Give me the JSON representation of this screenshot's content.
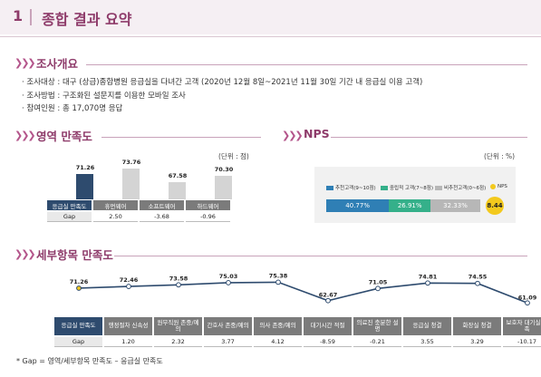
{
  "header": {
    "number": "1",
    "title": "종합 결과 요약"
  },
  "overview": {
    "title": "조사개요",
    "bullets": [
      "· 조사대상 : 대구 (상급)종합병원 응급실을 다녀간 고객 (2020년 12월 8일~2021년 11월 30일 기간 내 응급실 이용 고객)",
      "· 조사방법 : 구조화된 설문지를 이용한 모바일 조사",
      "· 참여인원 : 총 17,070명 응답"
    ]
  },
  "area": {
    "title": "영역 만족도",
    "unit": "(단위 : 점)",
    "gap_label": "Gap",
    "chart_data": {
      "type": "bar",
      "categories": [
        "응급실 만족도",
        "휴먼웨어",
        "소프트웨어",
        "하드웨어"
      ],
      "values": [
        71.26,
        73.76,
        67.58,
        70.3
      ],
      "value_labels": [
        "71.26",
        "73.76",
        "67.58",
        "70.30"
      ],
      "gaps": [
        "",
        "2.50",
        "-3.68",
        "-0.96"
      ],
      "colors": [
        "#2e4b6e",
        "#d4d4d4",
        "#d4d4d4",
        "#d4d4d4"
      ]
    }
  },
  "nps": {
    "title": "NPS",
    "unit": "(단위 : %)",
    "chart_data": {
      "type": "bar",
      "orientation": "stacked-horizontal",
      "series": [
        {
          "name": "추천고객(9~10점)",
          "value": 40.77,
          "label": "40.77%",
          "color": "#2f7fb5"
        },
        {
          "name": "중립적 고객(7~8점)",
          "value": 26.91,
          "label": "26.91%",
          "color": "#35b08a"
        },
        {
          "name": "비추천고객(0~6점)",
          "value": 32.33,
          "label": "32.33%",
          "color": "#b7b7b7"
        }
      ],
      "nps_label": "NPS",
      "nps_value": "8.44",
      "nps_color": "#f3c91d"
    }
  },
  "detail": {
    "title": "세부항목 만족도",
    "gap_label": "Gap",
    "note": "* Gap = 영역/세부항목 만족도 – 응급실 만족도",
    "chart_data": {
      "type": "line",
      "categories": [
        "응급실 만족도",
        "행정절차 신속성",
        "원무직원 존중/예의",
        "간호사 존중/예의",
        "의사 존중/예의",
        "대기시간 적절",
        "의료진 충분한 설명",
        "응급실 청결",
        "화장실 청결",
        "보호자 대기실 만족"
      ],
      "values": [
        71.26,
        72.46,
        73.58,
        75.03,
        75.38,
        62.67,
        71.05,
        74.81,
        74.55,
        61.09
      ],
      "value_labels": [
        "71.26",
        "72.46",
        "73.58",
        "75.03",
        "75.38",
        "62.67",
        "71.05",
        "74.81",
        "74.55",
        "61.09"
      ],
      "gaps": [
        "",
        "1.20",
        "2.32",
        "3.77",
        "4.12",
        "-8.59",
        "-0.21",
        "3.55",
        "3.29",
        "-10.17"
      ],
      "ylim": [
        55,
        80
      ],
      "line_color": "#2e4b6e",
      "first_point_color": "#f3c91d"
    }
  }
}
